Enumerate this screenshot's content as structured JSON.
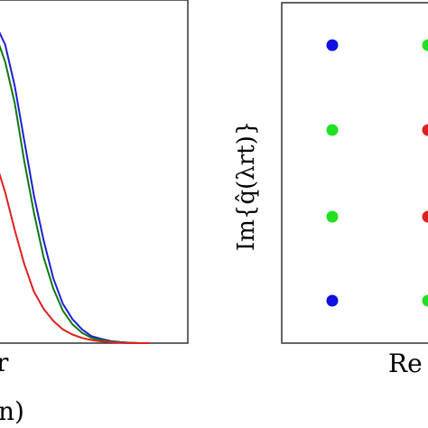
{
  "chart_data": [
    {
      "type": "line",
      "xlabel_fragment": "r",
      "caption_fragment": "n)",
      "xlim": [
        0,
        1
      ],
      "ylim": [
        0,
        1
      ],
      "x": [
        0.0,
        0.05,
        0.1,
        0.15,
        0.2,
        0.25,
        0.3,
        0.35,
        0.4,
        0.45,
        0.5,
        0.55,
        0.6,
        0.65,
        0.7,
        0.75,
        0.8
      ],
      "series": [
        {
          "color": "#1f1fd6",
          "values": [
            0.93,
            0.87,
            0.75,
            0.59,
            0.43,
            0.3,
            0.19,
            0.115,
            0.07,
            0.04,
            0.02,
            0.012,
            0.006,
            0.003,
            0.001,
            0.0,
            0.0
          ]
        },
        {
          "color": "#0e7a0e",
          "values": [
            0.9,
            0.82,
            0.7,
            0.53,
            0.38,
            0.25,
            0.16,
            0.095,
            0.055,
            0.03,
            0.015,
            0.009,
            0.005,
            0.002,
            0.001,
            0.0,
            0.0
          ]
        },
        {
          "color": "#e02020",
          "values": [
            0.53,
            0.44,
            0.33,
            0.23,
            0.15,
            0.1,
            0.065,
            0.04,
            0.025,
            0.015,
            0.009,
            0.005,
            0.003,
            0.001,
            0.0,
            0.0,
            0.0
          ]
        }
      ]
    },
    {
      "type": "scatter",
      "ylabel": "Im{q̂(λrt)}",
      "xlabel_fragment": "Re",
      "points": [
        {
          "x": 0,
          "y": 3,
          "color": "#1010e0"
        },
        {
          "x": 1,
          "y": 3,
          "color": "#22e022"
        },
        {
          "x": 0,
          "y": 2,
          "color": "#22e022"
        },
        {
          "x": 1,
          "y": 2,
          "color": "#e02020"
        },
        {
          "x": 0,
          "y": 1,
          "color": "#22e022"
        },
        {
          "x": 1,
          "y": 1,
          "color": "#e02020"
        },
        {
          "x": 0,
          "y": 0,
          "color": "#1010e0"
        },
        {
          "x": 1,
          "y": 0,
          "color": "#22e022"
        }
      ]
    }
  ]
}
